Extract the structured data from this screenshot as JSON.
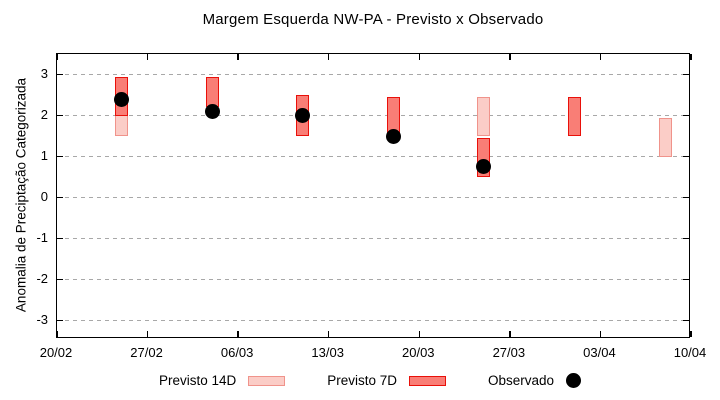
{
  "chart_data": {
    "type": "bar",
    "title": "Margem Esquerda NW-PA - Previsto x Observado",
    "xlabel": "",
    "ylabel": "Anomalia de Preciptação Categorizada",
    "xlim_days": [
      0,
      49
    ],
    "ylim": [
      -3.45,
      3.5
    ],
    "grid": "horizontal-dashed",
    "grid_color": "#a8a8a8",
    "axis_color": "#000000",
    "background_color": "#ffffff",
    "legend_position": "bottom",
    "x_ticks": [
      {
        "label": "20/02",
        "day": 0
      },
      {
        "label": "27/02",
        "day": 7
      },
      {
        "label": "06/03",
        "day": 14
      },
      {
        "label": "13/03",
        "day": 21
      },
      {
        "label": "20/03",
        "day": 28
      },
      {
        "label": "27/03",
        "day": 35
      },
      {
        "label": "03/04",
        "day": 42
      },
      {
        "label": "10/04",
        "day": 49
      }
    ],
    "y_ticks": [
      3,
      2,
      1,
      0,
      -1,
      -2,
      -3
    ],
    "bar_width_days": 1,
    "series": [
      {
        "name": "Previsto 14D",
        "type": "range-bar",
        "fill": "#fbcdc7",
        "border": "#f0938b",
        "points": [
          {
            "day": 5,
            "low": 1.5,
            "high": 2.95
          },
          {
            "day": 33,
            "low": 1.5,
            "high": 2.45
          },
          {
            "day": 47,
            "low": 1.0,
            "high": 1.95
          }
        ]
      },
      {
        "name": "Previsto 7D",
        "type": "range-bar",
        "fill": "#f97e76",
        "border": "#e9100a",
        "points": [
          {
            "day": 5,
            "low": 2.0,
            "high": 2.95
          },
          {
            "day": 12,
            "low": 2.2,
            "high": 2.95
          },
          {
            "day": 19,
            "low": 1.5,
            "high": 2.5
          },
          {
            "day": 26,
            "low": 1.5,
            "high": 2.45
          },
          {
            "day": 33,
            "low": 0.5,
            "high": 1.45
          },
          {
            "day": 40,
            "low": 1.5,
            "high": 2.45
          }
        ]
      },
      {
        "name": "Observado",
        "type": "scatter",
        "color": "#000000",
        "points": [
          {
            "day": 5,
            "value": 2.4
          },
          {
            "day": 12,
            "value": 2.1
          },
          {
            "day": 19,
            "value": 2.0
          },
          {
            "day": 26,
            "value": 1.5
          },
          {
            "day": 33,
            "value": 0.75
          }
        ]
      }
    ]
  }
}
